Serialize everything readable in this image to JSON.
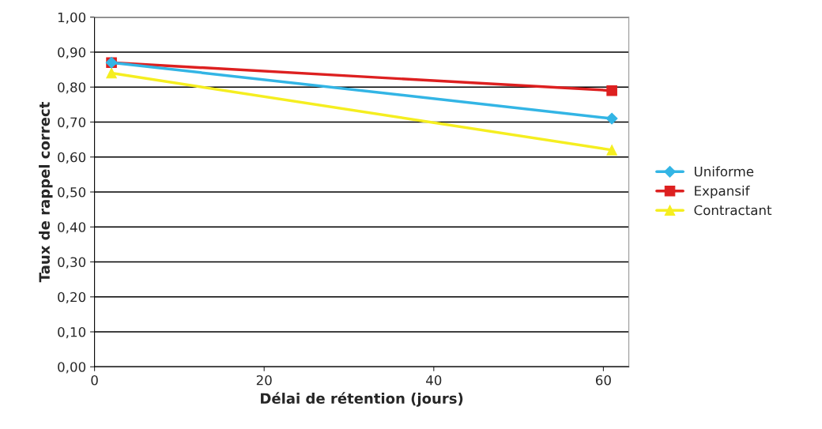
{
  "chart_data": {
    "type": "line",
    "xlabel": "Délai de rétention (jours)",
    "ylabel": "Taux de rappel correct",
    "x": [
      2,
      61
    ],
    "series": [
      {
        "name": "Uniforme",
        "color": "#33b5e5",
        "values": [
          0.87,
          0.71
        ],
        "marker": "diamond"
      },
      {
        "name": "Expansif",
        "color": "#dd2020",
        "values": [
          0.87,
          0.79
        ],
        "marker": "square"
      },
      {
        "name": "Contractant",
        "color": "#f5ee20",
        "values": [
          0.84,
          0.62
        ],
        "marker": "triangle"
      }
    ],
    "xlim": [
      0,
      63
    ],
    "xticks": [
      0,
      20,
      40,
      60
    ],
    "ylim": [
      0,
      1
    ],
    "yticks": [
      {
        "value": 0,
        "label": "0,00"
      },
      {
        "value": 0.1,
        "label": "0,10"
      },
      {
        "value": 0.2,
        "label": "0,20"
      },
      {
        "value": 0.3,
        "label": "0,30"
      },
      {
        "value": 0.4,
        "label": "0,40"
      },
      {
        "value": 0.5,
        "label": "0,50"
      },
      {
        "value": 0.6,
        "label": "0,60"
      },
      {
        "value": 0.7,
        "label": "0,70"
      },
      {
        "value": 0.8,
        "label": "0,80"
      },
      {
        "value": 0.9,
        "label": "0,90"
      },
      {
        "value": 1,
        "label": "1,00"
      }
    ],
    "grid": "y",
    "legend": "right",
    "line_style": "solid"
  }
}
